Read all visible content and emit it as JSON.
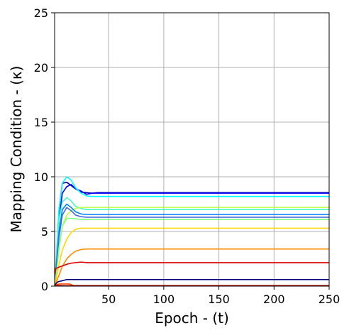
{
  "chart_data": {
    "type": "line",
    "title": "",
    "xlabel": "Epoch - (t)",
    "ylabel": "Mapping Condition - (κ)",
    "xlim": [
      1,
      250
    ],
    "ylim": [
      0,
      25
    ],
    "xticks": [
      50,
      100,
      150,
      200,
      250
    ],
    "yticks": [
      0,
      5,
      10,
      15,
      20,
      25
    ],
    "grid": true,
    "legend": "none",
    "series": [
      {
        "color": "#00009f",
        "x": [
          1,
          3,
          5,
          8,
          12,
          16,
          20,
          25,
          30,
          35,
          40,
          250
        ],
        "values": [
          0.0,
          3.0,
          7.0,
          9.4,
          9.5,
          9.2,
          8.9,
          8.6,
          8.55,
          8.5,
          8.55,
          8.55
        ]
      },
      {
        "color": "#0000ff",
        "x": [
          1,
          3,
          5,
          8,
          12,
          16,
          20,
          25,
          30,
          35,
          40,
          250
        ],
        "values": [
          0.0,
          2.5,
          6.0,
          8.5,
          9.1,
          9.3,
          8.9,
          8.7,
          8.4,
          8.5,
          8.5,
          8.5
        ]
      },
      {
        "color": "#00ffff",
        "x": [
          1,
          3,
          5,
          8,
          12,
          16,
          20,
          25,
          30,
          35,
          250
        ],
        "values": [
          0.0,
          3.5,
          7.0,
          9.4,
          10.0,
          9.7,
          9.0,
          8.5,
          8.25,
          8.2,
          8.2
        ]
      },
      {
        "color": "#40ffbf",
        "x": [
          1,
          3,
          5,
          8,
          12,
          16,
          20,
          25,
          30,
          250
        ],
        "values": [
          0.0,
          3.0,
          6.0,
          7.7,
          8.1,
          7.8,
          7.3,
          7.1,
          7.0,
          7.0
        ]
      },
      {
        "color": "#bfff40",
        "x": [
          1,
          3,
          5,
          8,
          12,
          16,
          20,
          25,
          30,
          250
        ],
        "values": [
          0.0,
          1.5,
          3.5,
          5.5,
          6.5,
          6.9,
          7.1,
          7.2,
          7.2,
          7.2
        ]
      },
      {
        "color": "#0080ff",
        "x": [
          1,
          3,
          5,
          8,
          12,
          16,
          20,
          25,
          30,
          250
        ],
        "values": [
          0.0,
          2.5,
          5.0,
          7.0,
          7.5,
          7.2,
          6.8,
          6.6,
          6.55,
          6.55
        ]
      },
      {
        "color": "#4169e1",
        "x": [
          1,
          3,
          5,
          8,
          12,
          16,
          20,
          25,
          30,
          250
        ],
        "values": [
          0.0,
          2.0,
          4.5,
          6.5,
          7.2,
          6.9,
          6.5,
          6.35,
          6.3,
          6.3
        ]
      },
      {
        "color": "#80ff80",
        "x": [
          1,
          3,
          5,
          8,
          12,
          16,
          20,
          25,
          30,
          250
        ],
        "values": [
          0.0,
          1.5,
          3.5,
          5.5,
          6.2,
          6.2,
          6.15,
          6.1,
          6.1,
          6.1
        ]
      },
      {
        "color": "#ffd700",
        "x": [
          1,
          3,
          5,
          8,
          12,
          16,
          20,
          25,
          30,
          250
        ],
        "values": [
          0.0,
          1.0,
          2.0,
          3.3,
          4.3,
          4.9,
          5.2,
          5.3,
          5.3,
          5.3
        ]
      },
      {
        "color": "#ff8c00",
        "x": [
          1,
          3,
          5,
          8,
          12,
          16,
          20,
          25,
          30,
          35,
          250
        ],
        "values": [
          0.0,
          0.5,
          1.0,
          1.8,
          2.5,
          2.9,
          3.2,
          3.35,
          3.4,
          3.4,
          3.4
        ]
      },
      {
        "color": "#dd0000",
        "x": [
          1,
          2,
          4,
          8,
          12,
          16,
          20,
          25,
          30,
          35,
          250
        ],
        "values": [
          1.0,
          1.6,
          1.7,
          1.85,
          2.0,
          2.1,
          2.15,
          2.2,
          2.15,
          2.15,
          2.15
        ]
      },
      {
        "color": "#000080",
        "x": [
          1,
          2,
          4,
          8,
          12,
          16,
          20,
          250
        ],
        "values": [
          0.0,
          0.2,
          0.4,
          0.5,
          0.6,
          0.6,
          0.6,
          0.6
        ]
      },
      {
        "color": "#ff4500",
        "x": [
          1,
          3,
          6,
          10,
          14,
          16,
          18,
          250
        ],
        "values": [
          0.0,
          0.15,
          0.2,
          0.2,
          0.2,
          0.15,
          0.05,
          0.05
        ]
      },
      {
        "color": "#aa0000",
        "x": [
          1,
          3,
          6,
          10,
          250
        ],
        "values": [
          0.0,
          0.05,
          0.05,
          0.04,
          0.04
        ]
      }
    ]
  }
}
